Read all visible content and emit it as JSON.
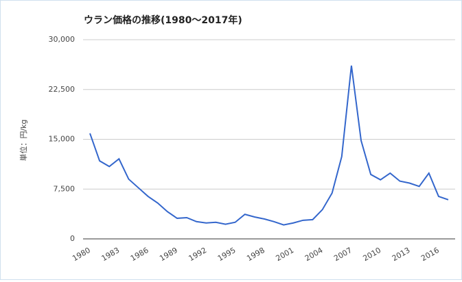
{
  "chart_data": {
    "type": "line",
    "title": "ウラン価格の推移(1980～2017年)",
    "y_label": "単位：円/kg",
    "x": [
      1980,
      1981,
      1982,
      1983,
      1984,
      1985,
      1986,
      1987,
      1988,
      1989,
      1990,
      1991,
      1992,
      1993,
      1994,
      1995,
      1996,
      1997,
      1998,
      1999,
      2000,
      2001,
      2002,
      2003,
      2004,
      2005,
      2006,
      2007,
      2008,
      2009,
      2010,
      2011,
      2012,
      2013,
      2014,
      2015,
      2016,
      2017
    ],
    "series": [
      {
        "color": "#3366cc",
        "values": [
          15900,
          11750,
          10900,
          12050,
          9000,
          7700,
          6400,
          5400,
          4100,
          3100,
          3200,
          2600,
          2400,
          2500,
          2200,
          2500,
          3700,
          3300,
          3000,
          2600,
          2100,
          2400,
          2800,
          2900,
          4400,
          6900,
          12400,
          26100,
          14800,
          9700,
          8900,
          9900,
          8700,
          8400,
          7900,
          9900,
          6400,
          5900
        ]
      }
    ],
    "xlim": [
      1980,
      2017
    ],
    "xticks": [
      1980,
      1983,
      1986,
      1989,
      1992,
      1995,
      1998,
      2001,
      2004,
      2007,
      2010,
      2013,
      2016
    ],
    "ylim": [
      0,
      30000
    ],
    "yticks": [
      0,
      {
        "value": 7500,
        "label": "7,500"
      },
      {
        "value": 15000,
        "label": "15,000"
      },
      {
        "value": 22500,
        "label": "22,500"
      },
      {
        "value": 30000,
        "label": "30,000"
      }
    ],
    "grid": true
  }
}
